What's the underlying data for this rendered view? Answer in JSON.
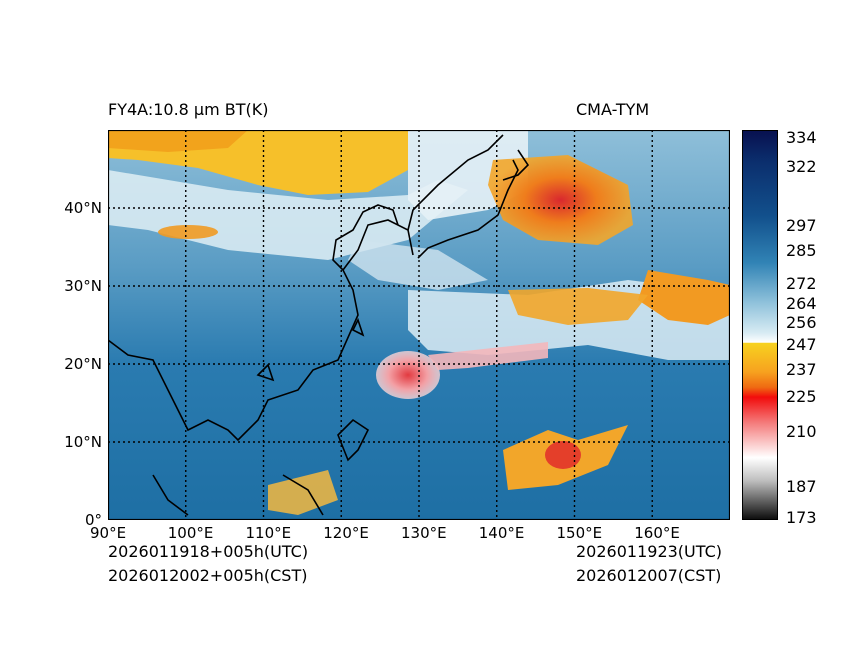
{
  "header": {
    "left_title": "FY4A:10.8 µm BT(K)",
    "right_title": "CMA-TYM"
  },
  "footer": {
    "left_line1": "2026011918+005h(UTC)",
    "left_line2": "2026012002+005h(CST)",
    "right_line1": "2026011923(UTC)",
    "right_line2": "2026012007(CST)"
  },
  "map": {
    "lon_ticks": [
      "90°E",
      "100°E",
      "110°E",
      "120°E",
      "130°E",
      "140°E",
      "150°E",
      "160°E"
    ],
    "lat_ticks": [
      "0°",
      "10°N",
      "20°N",
      "30°N",
      "40°N"
    ],
    "lon_range": [
      90,
      170
    ],
    "lat_range": [
      0,
      50
    ]
  },
  "colorbar": {
    "tick_values": [
      334,
      322,
      297,
      285,
      272,
      264,
      256,
      247,
      237,
      225,
      210,
      187,
      173
    ],
    "tick_labels": [
      "334",
      "322",
      "297",
      "285",
      "272",
      "264",
      "256",
      "247",
      "237",
      "225",
      "210",
      "187",
      "173"
    ],
    "range": [
      173,
      334
    ]
  },
  "colors": {
    "land_line": "#000000",
    "ocean_warm": "#1f6fa3",
    "deep_blue": "#0b1f5c",
    "cloud_white": "#e8f2f7",
    "cold_orange": "#f39a1a",
    "cold_red": "#e0262b"
  }
}
